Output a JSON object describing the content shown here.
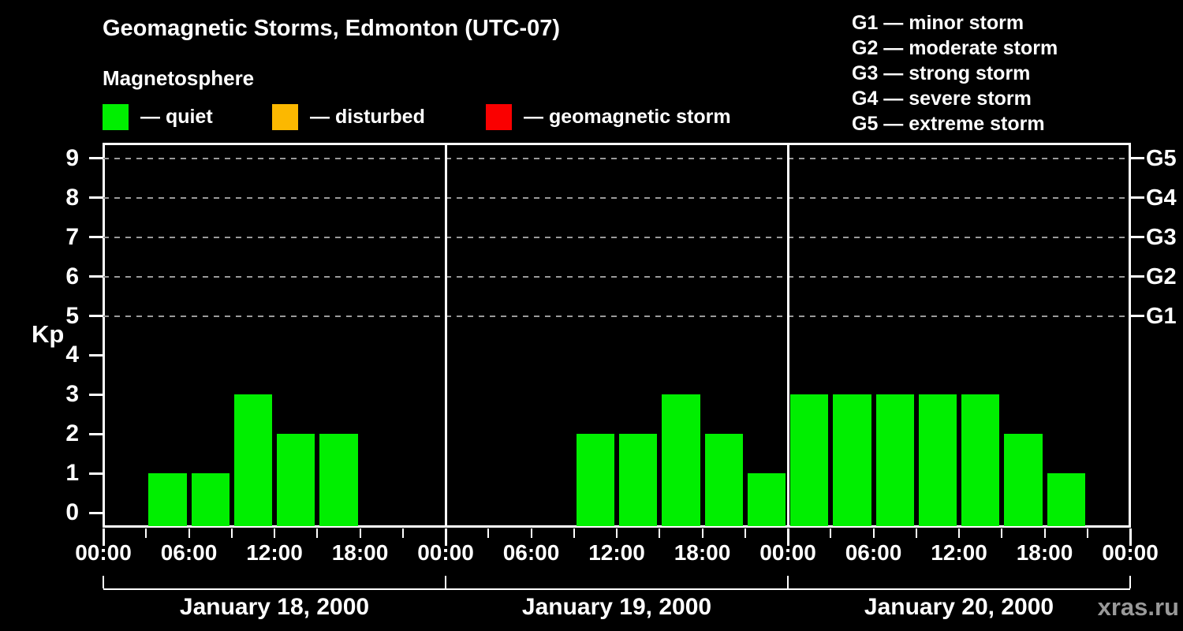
{
  "title": "Geomagnetic Storms, Edmonton (UTC-07)",
  "subtitle": "Magnetosphere",
  "watermark": "xras.ru",
  "legend": {
    "items": [
      {
        "name": "quiet",
        "label": "— quiet",
        "color": "#00ef00"
      },
      {
        "name": "disturbed",
        "label": "— disturbed",
        "color": "#fcb800"
      },
      {
        "name": "geomagnetic-storm",
        "label": "— geomagnetic storm",
        "color": "#fa0000"
      }
    ]
  },
  "g_legend": {
    "items": [
      {
        "label": "G1 — minor storm"
      },
      {
        "label": "G2 — moderate storm"
      },
      {
        "label": "G3 — strong storm"
      },
      {
        "label": "G4 — severe storm"
      },
      {
        "label": "G5 — extreme storm"
      }
    ]
  },
  "chart_data": {
    "type": "bar",
    "title": "Geomagnetic Storms, Edmonton (UTC-07)",
    "subtitle": "Magnetosphere",
    "ylabel": "Kp",
    "ylim": [
      -0.36,
      9.4
    ],
    "y_ticks": [
      0,
      1,
      2,
      3,
      4,
      5,
      6,
      7,
      8,
      9
    ],
    "gridlines_at": [
      5,
      6,
      7,
      8,
      9
    ],
    "right_axis_labels": [
      {
        "value": 5,
        "label": "G1"
      },
      {
        "value": 6,
        "label": "G2"
      },
      {
        "value": 7,
        "label": "G3"
      },
      {
        "value": 8,
        "label": "G4"
      },
      {
        "value": 9,
        "label": "G5"
      }
    ],
    "interval_hours": 3,
    "x_major_label_hours": 6,
    "time_labels": [
      "00:00",
      "06:00",
      "12:00",
      "18:00"
    ],
    "end_time_label": "00:00",
    "days": [
      {
        "date": "January 18, 2000",
        "kp_3h": [
          0,
          1,
          1,
          3,
          2,
          2,
          0,
          0
        ]
      },
      {
        "date": "January 19, 2000",
        "kp_3h": [
          0,
          0,
          0,
          2,
          2,
          3,
          2,
          1
        ]
      },
      {
        "date": "January 20, 2000",
        "kp_3h": [
          3,
          3,
          3,
          3,
          3,
          2,
          1,
          0
        ]
      }
    ],
    "bar_color_rule": {
      "quiet_kp_max": 3,
      "disturbed_kp": 4,
      "storm_kp_min": 5
    },
    "colors": {
      "quiet": "#00ef00",
      "disturbed": "#fcb800",
      "storm": "#fa0000",
      "grid": "#9a9a9a",
      "axis": "#ffffff",
      "background": "#000000",
      "watermark": "#999999"
    },
    "legend_position": "top",
    "grid": "dashed horizontal at G-levels only"
  }
}
